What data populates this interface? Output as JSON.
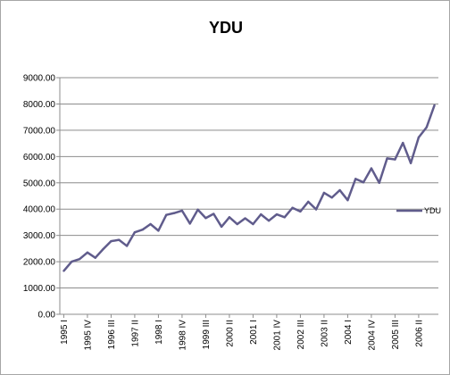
{
  "chart_data": {
    "type": "line",
    "title": "YDU",
    "xlabel": "",
    "ylabel": "",
    "ylim": [
      0,
      9000
    ],
    "yticks": [
      "0.00",
      "1000.00",
      "2000.00",
      "3000.00",
      "4000.00",
      "5000.00",
      "6000.00",
      "7000.00",
      "8000.00",
      "9000.00"
    ],
    "grid": "horizontal",
    "legend": "right",
    "line_color": "#605c8c",
    "categories": [
      "1995 I",
      "1995 II",
      "1995 III",
      "1995 IV",
      "1996 I",
      "1996 II",
      "1996 III",
      "1996 IV",
      "1997 I",
      "1997 II",
      "1997 III",
      "1997 IV",
      "1998 I",
      "1998 II",
      "1998 III",
      "1998 IV",
      "1999 I",
      "1999 II",
      "1999 III",
      "1999 IV",
      "2000 I",
      "2000 II",
      "2000 III",
      "2000 IV",
      "2001 I",
      "2001 II",
      "2001 III",
      "2001 IV",
      "2002 I",
      "2002 II",
      "2002 III",
      "2002 IV",
      "2003 I",
      "2003 II",
      "2003 III",
      "2003 IV",
      "2004 I",
      "2004 II",
      "2004 III",
      "2004 IV",
      "2005 I",
      "2005 II",
      "2005 III",
      "2005 IV",
      "2006 I",
      "2006 II",
      "2006 III",
      "2006 IV"
    ],
    "tick_labels": [
      "1995 I",
      "1995 IV",
      "1996 III",
      "1997 II",
      "1998 I",
      "1998 IV",
      "1999 III",
      "2000 II",
      "2001 I",
      "2001 IV",
      "2002 III",
      "2003 II",
      "2004 I",
      "2004 IV",
      "2005 III",
      "2006 II"
    ],
    "series": [
      {
        "name": "YDU",
        "values": [
          1650,
          2000,
          2100,
          2350,
          2150,
          2480,
          2780,
          2830,
          2600,
          3120,
          3220,
          3430,
          3180,
          3780,
          3850,
          3940,
          3450,
          3980,
          3660,
          3820,
          3330,
          3690,
          3430,
          3650,
          3430,
          3800,
          3560,
          3800,
          3690,
          4050,
          3910,
          4280,
          3990,
          4620,
          4440,
          4720,
          4340,
          5150,
          5020,
          5550,
          5000,
          5930,
          5890,
          6520,
          5750,
          6730,
          7110,
          7950
        ]
      }
    ]
  }
}
